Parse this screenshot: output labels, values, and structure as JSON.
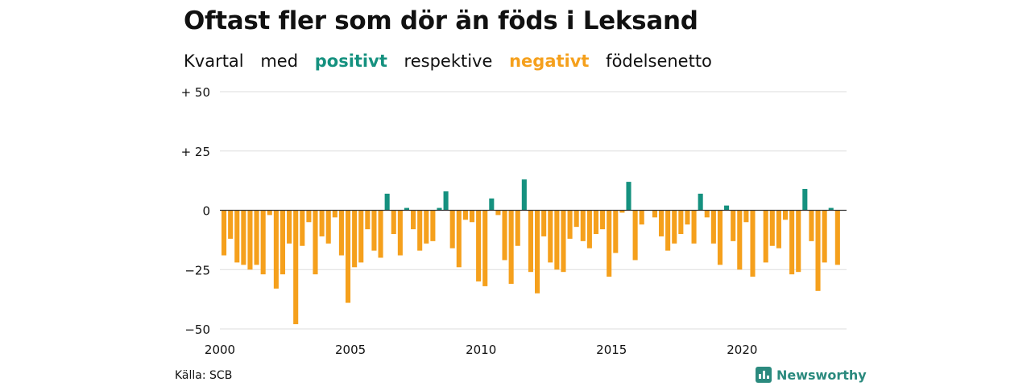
{
  "title": "Oftast fler som dör än föds i Leksand",
  "subtitle": {
    "part1": "Kvartal",
    "part2": "med",
    "positive": "positivt",
    "part3": "respektive",
    "negative": "negativt",
    "part4": "födelsenetto"
  },
  "source": "Källa: SCB",
  "brand": {
    "name": "Newsworthy",
    "icon": "newsworthy-logo-icon"
  },
  "colors": {
    "positive": "#15917f",
    "negative": "#f5a01c",
    "grid": "#dddddd",
    "zero": "#333333"
  },
  "chart_data": {
    "type": "bar",
    "title": "Oftast fler som dör än föds i Leksand",
    "subtitle": "Kvartal med positivt respektive negativt födelsenetto",
    "xlabel": "",
    "ylabel": "",
    "x_start": 2000.0,
    "x_step": 0.25,
    "xlim": [
      2000,
      2024
    ],
    "ylim": [
      -50,
      50
    ],
    "y_ticks": [
      {
        "value": 50,
        "label": "+ 50"
      },
      {
        "value": 25,
        "label": "+ 25"
      },
      {
        "value": 0,
        "label": "0"
      },
      {
        "value": -25,
        "label": "−25"
      },
      {
        "value": -50,
        "label": "−50"
      }
    ],
    "x_ticks": [
      {
        "value": 2000,
        "label": "2000"
      },
      {
        "value": 2005,
        "label": "2005"
      },
      {
        "value": 2010,
        "label": "2010"
      },
      {
        "value": 2015,
        "label": "2015"
      },
      {
        "value": 2020,
        "label": "2020"
      }
    ],
    "grid": true,
    "values": [
      -19,
      -12,
      -22,
      -23,
      -25,
      -23,
      -27,
      -2,
      -33,
      -27,
      -14,
      -48,
      -15,
      -5,
      -27,
      -11,
      -14,
      -3,
      -19,
      -39,
      -24,
      -22,
      -8,
      -17,
      -20,
      7,
      -10,
      -19,
      1,
      -8,
      -17,
      -14,
      -13,
      1,
      8,
      -16,
      -24,
      -4,
      -5,
      -30,
      -32,
      5,
      -2,
      -21,
      -31,
      -15,
      13,
      -26,
      -35,
      -11,
      -22,
      -25,
      -26,
      -12,
      -7,
      -13,
      -16,
      -10,
      -8,
      -28,
      -18,
      -1,
      12,
      -21,
      -6,
      0,
      -3,
      -11,
      -17,
      -14,
      -10,
      -6,
      -14,
      7,
      -3,
      -14,
      -23,
      2,
      -13,
      -25,
      -5,
      -28,
      0,
      -22,
      -15,
      -16,
      -4,
      -27,
      -26,
      9,
      -13,
      -34,
      -22,
      1,
      -23
    ]
  }
}
